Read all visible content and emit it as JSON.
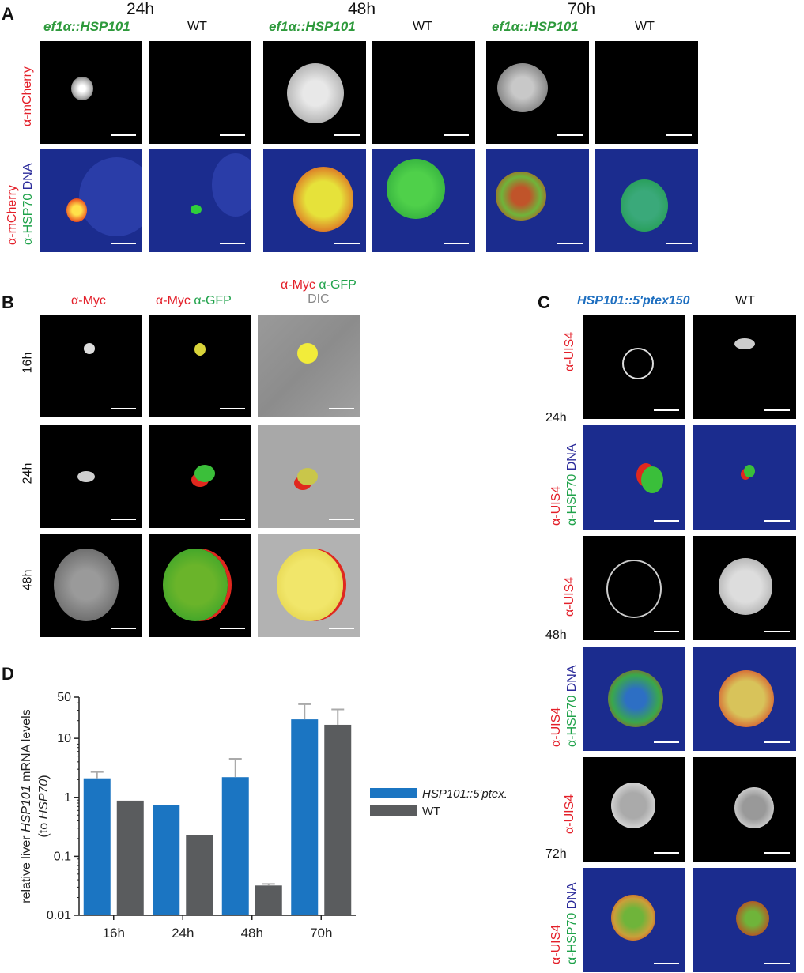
{
  "panelA": {
    "letter": "A",
    "timepoints": [
      "24h",
      "48h",
      "70h"
    ],
    "genotype": "ef1α::HSP101",
    "wt": "WT",
    "row1": {
      "red": "α-mCherry"
    },
    "row2": {
      "red": "α-mCherry",
      "green": "α-HSP70",
      "blue": "DNA"
    }
  },
  "panelB": {
    "letter": "B",
    "col1": {
      "red": "α-Myc"
    },
    "col2": {
      "red": "α-Myc",
      "green": "α-GFP"
    },
    "col3": {
      "red": "α-Myc",
      "green": "α-GFP",
      "gray": "DIC"
    },
    "rows": [
      "16h",
      "24h",
      "48h"
    ]
  },
  "panelC": {
    "letter": "C",
    "genotype": "HSP101::5′ptex150",
    "wt": "WT",
    "uis4": "α-UIS4",
    "hsp70": "α-HSP70",
    "dna": "DNA",
    "times": [
      "24h",
      "48h",
      "72h"
    ]
  },
  "panelD": {
    "letter": "D",
    "chart_data": {
      "type": "bar",
      "categories": [
        "16h",
        "24h",
        "48h",
        "70h"
      ],
      "series": [
        {
          "name": "HSP101::5′ptex150",
          "color": "#1b75c2",
          "values": [
            2.1,
            0.75,
            2.2,
            21
          ],
          "err_top": [
            2.7,
            null,
            4.5,
            38
          ]
        },
        {
          "name": "WT",
          "color": "#5a5c5e",
          "values": [
            0.88,
            0.23,
            0.032,
            17
          ],
          "err_top": [
            null,
            null,
            0.034,
            31
          ]
        }
      ],
      "ylabel_parts": [
        "relative liver ",
        "HSP101",
        " mRNA levels"
      ],
      "ylabel2_parts": [
        "(to ",
        "HSP70",
        ")"
      ],
      "yscale": "log",
      "ylim": [
        0.01,
        50
      ],
      "yticks": [
        "50",
        "10",
        "1",
        "0.1",
        "0.01"
      ],
      "ytick_values": [
        50,
        10,
        1,
        0.1,
        0.01
      ]
    }
  }
}
